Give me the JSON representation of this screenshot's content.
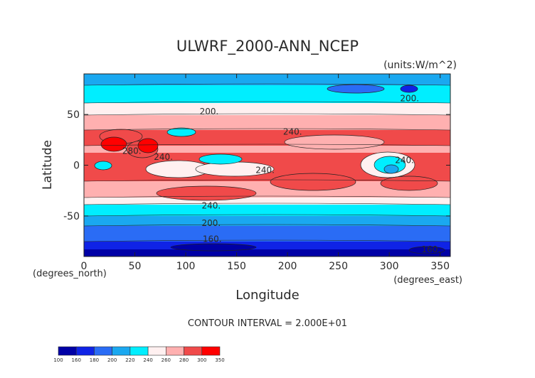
{
  "chart_data": {
    "type": "contour",
    "title": "ULWRF_2000-ANN_NCEP",
    "units": "(units:W/m^2)",
    "xlabel": "Longitude",
    "ylabel": "Latitude",
    "x_unit_label": "(degrees_east)",
    "y_unit_label": "(degrees_north)",
    "xlim": [
      0,
      360
    ],
    "ylim": [
      -90,
      90
    ],
    "x_ticks": [
      {
        "value": 0,
        "label": "0"
      },
      {
        "value": 50,
        "label": "50"
      },
      {
        "value": 100,
        "label": "100"
      },
      {
        "value": 150,
        "label": "150"
      },
      {
        "value": 200,
        "label": "200"
      },
      {
        "value": 250,
        "label": "250"
      },
      {
        "value": 300,
        "label": "300"
      },
      {
        "value": 350,
        "label": "350"
      }
    ],
    "y_ticks": [
      {
        "value": 50,
        "label": "50"
      },
      {
        "value": 0,
        "label": "0"
      },
      {
        "value": -50,
        "label": "-50"
      }
    ],
    "contour_interval_text": "CONTOUR INTERVAL = 2.000E+01",
    "levels": [
      100,
      160,
      180,
      200,
      220,
      240,
      260,
      280,
      300,
      350
    ],
    "level_colors": [
      "#0000a6",
      "#0f23e6",
      "#2a6cf5",
      "#1aa8f0",
      "#00eeff",
      "#fff0f0",
      "#ffb0b0",
      "#f04a4a",
      "#ff0000"
    ],
    "contour_labels": [
      {
        "text": "200.",
        "lon": 123,
        "lat": 53
      },
      {
        "text": "200.",
        "lon": 320,
        "lat": 66
      },
      {
        "text": "240.",
        "lon": 205,
        "lat": 33
      },
      {
        "text": "280.",
        "lon": 47,
        "lat": 14
      },
      {
        "text": "240.",
        "lon": 78,
        "lat": 8
      },
      {
        "text": "240.",
        "lon": 178,
        "lat": -5
      },
      {
        "text": "240.",
        "lon": 315,
        "lat": 5
      },
      {
        "text": "240.",
        "lon": 125,
        "lat": -40
      },
      {
        "text": "200.",
        "lon": 125,
        "lat": -57
      },
      {
        "text": "160.",
        "lon": 126,
        "lat": -73
      },
      {
        "text": "160.",
        "lon": 341,
        "lat": -83
      }
    ]
  }
}
